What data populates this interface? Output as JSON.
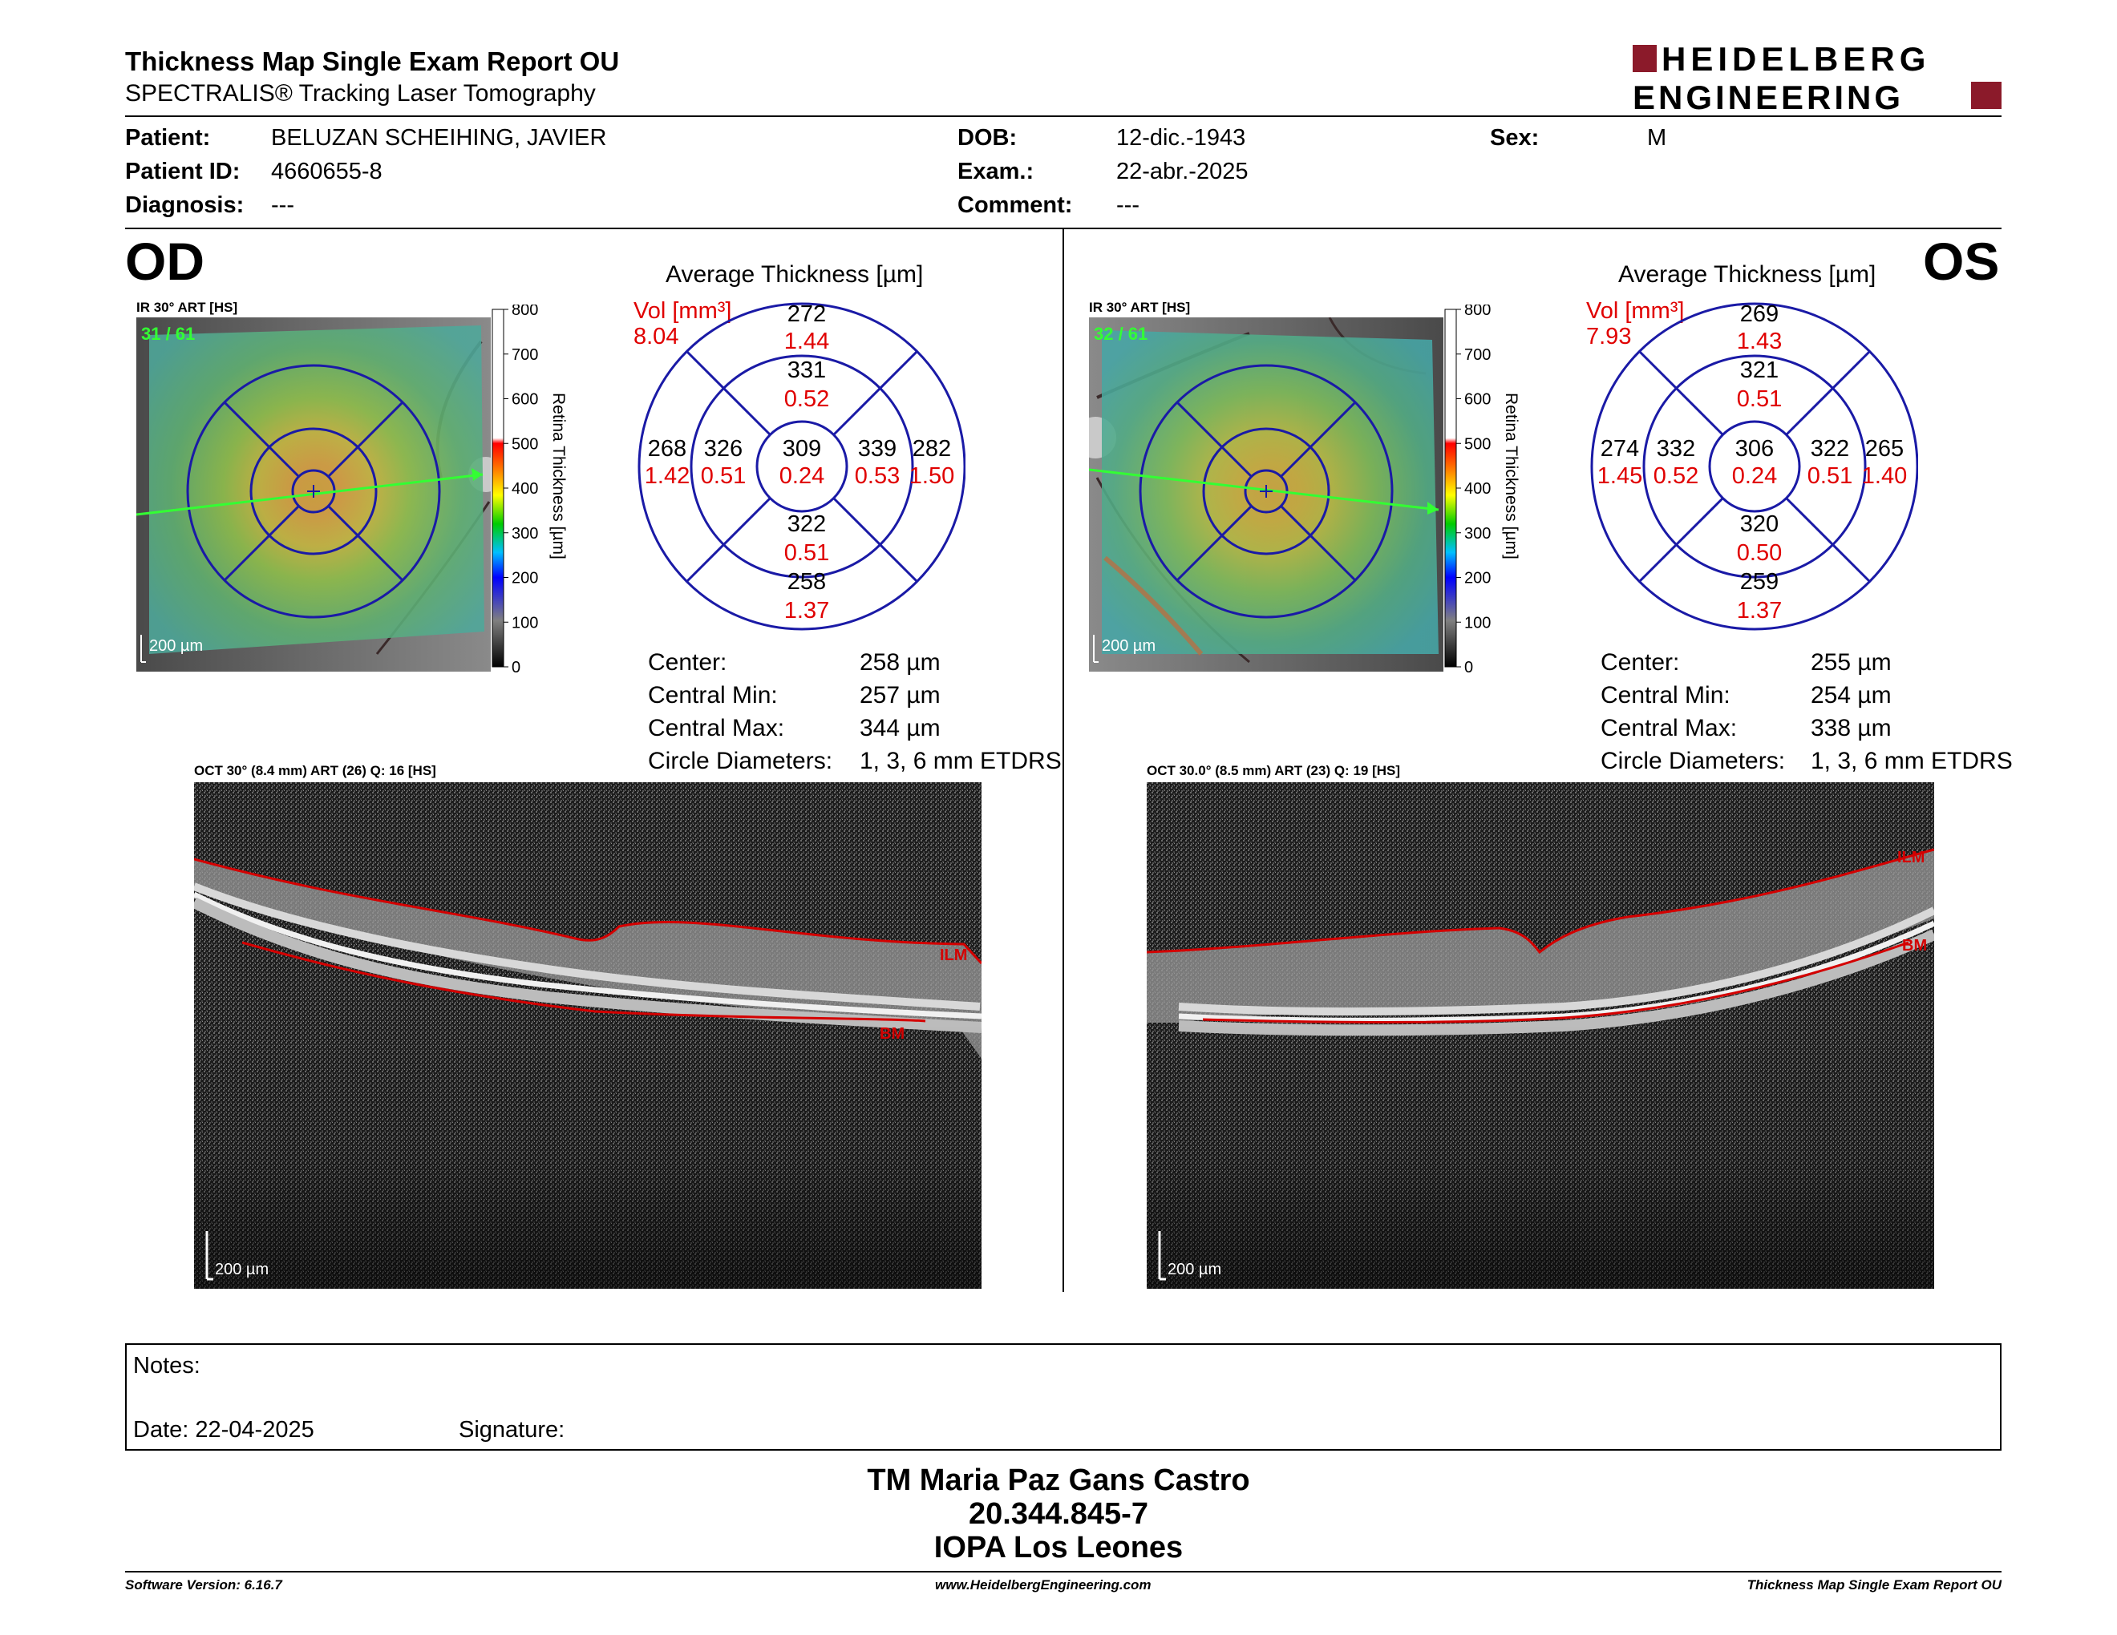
{
  "header": {
    "title": "Thickness Map Single Exam Report OU",
    "subtitle": "SPECTRALIS® Tracking Laser Tomography",
    "logo_line1": "HEIDELBERG",
    "logo_line2": "ENGINEERING",
    "logo_color": "#8b1a2a"
  },
  "patient": {
    "patient_label": "Patient:",
    "patient_value": "BELUZAN SCHEIHING, JAVIER",
    "patient_id_label": "Patient ID:",
    "patient_id_value": "4660655-8",
    "diagnosis_label": "Diagnosis:",
    "diagnosis_value": "---",
    "dob_label": "DOB:",
    "dob_value": "12-dic.-1943",
    "exam_label": "Exam.:",
    "exam_value": "22-abr.-2025",
    "comment_label": "Comment:",
    "comment_value": "---",
    "sex_label": "Sex:",
    "sex_value": "M"
  },
  "od": {
    "eye_label": "OD",
    "ir_label": "IR 30° ART [HS]",
    "ir_frames": "31 / 61",
    "ir_scale": "200 µm",
    "colorbar_title": "Retina Thickness [µm]",
    "colorbar_ticks": [
      "800",
      "700",
      "600",
      "500",
      "400",
      "300",
      "200",
      "100",
      "0"
    ],
    "avg_title": "Average Thickness [µm]",
    "vol_label": "Vol [mm³]",
    "vol_value": "8.04",
    "sectors": {
      "outer_sup": [
        "272",
        "1.44"
      ],
      "inner_sup": [
        "331",
        "0.52"
      ],
      "outer_left": [
        "268",
        "1.42"
      ],
      "inner_left": [
        "326",
        "0.51"
      ],
      "center": [
        "309",
        "0.24"
      ],
      "inner_right": [
        "339",
        "0.53"
      ],
      "outer_right": [
        "282",
        "1.50"
      ],
      "inner_inf": [
        "322",
        "0.51"
      ],
      "outer_inf": [
        "258",
        "1.37"
      ]
    },
    "stats": {
      "center_label": "Center:",
      "center_value": "258 µm",
      "min_label": "Central Min:",
      "min_value": "257 µm",
      "max_label": "Central Max:",
      "max_value": "344 µm",
      "circle_label": "Circle Diameters:",
      "circle_value": "1, 3, 6 mm ETDRS"
    },
    "oct_label": "OCT 30° (8.4 mm) ART (26) Q: 16 [HS]",
    "oct_scale": "200 µm",
    "ilm": "ILM",
    "bm": "BM"
  },
  "os": {
    "eye_label": "OS",
    "ir_label": "IR 30° ART [HS]",
    "ir_frames": "32 / 61",
    "ir_scale": "200 µm",
    "colorbar_title": "Retina Thickness [µm]",
    "colorbar_ticks": [
      "800",
      "700",
      "600",
      "500",
      "400",
      "300",
      "200",
      "100",
      "0"
    ],
    "avg_title": "Average Thickness [µm]",
    "vol_label": "Vol [mm³]",
    "vol_value": "7.93",
    "sectors": {
      "outer_sup": [
        "269",
        "1.43"
      ],
      "inner_sup": [
        "321",
        "0.51"
      ],
      "outer_left": [
        "274",
        "1.45"
      ],
      "inner_left": [
        "332",
        "0.52"
      ],
      "center": [
        "306",
        "0.24"
      ],
      "inner_right": [
        "322",
        "0.51"
      ],
      "outer_right": [
        "265",
        "1.40"
      ],
      "inner_inf": [
        "320",
        "0.50"
      ],
      "outer_inf": [
        "259",
        "1.37"
      ]
    },
    "stats": {
      "center_label": "Center:",
      "center_value": "255 µm",
      "min_label": "Central Min:",
      "min_value": "254 µm",
      "max_label": "Central Max:",
      "max_value": "338 µm",
      "circle_label": "Circle Diameters:",
      "circle_value": "1, 3, 6 mm ETDRS"
    },
    "oct_label": "OCT 30.0° (8.5 mm) ART (23) Q: 19 [HS]",
    "oct_scale": "200 µm",
    "ilm": "ILM",
    "bm": "BM"
  },
  "notes": {
    "notes_label": "Notes:",
    "date_label": "Date: 22-04-2025",
    "signature_label": "Signature:"
  },
  "signatory": {
    "name": "TM Maria Paz Gans Castro",
    "id": "20.344.845-7",
    "org": "IOPA Los Leones"
  },
  "footer": {
    "software": "Software Version: 6.16.7",
    "website": "www.HeidelbergEngineering.com",
    "report": "Thickness Map Single Exam Report OU"
  },
  "colors": {
    "red_value": "#e00000",
    "grid_blue": "#1a1aa6",
    "accent_green": "#33ff33"
  }
}
